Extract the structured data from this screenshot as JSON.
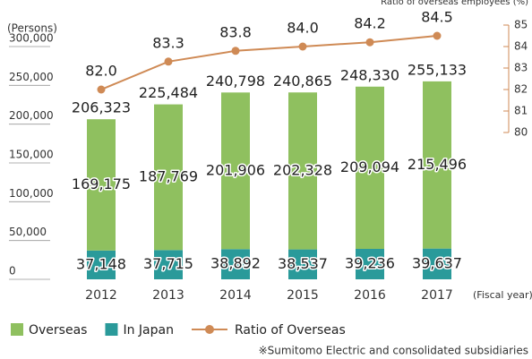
{
  "chart_data": {
    "type": "bar",
    "y_label": "(Persons)",
    "y2_label": "Ratio of overseas employees (%)",
    "x_label": "(Fiscal year)",
    "note": "※Sumitomo Electric and consolidated subsidiaries",
    "categories": [
      "2012",
      "2013",
      "2014",
      "2015",
      "2016",
      "2017"
    ],
    "stacked": true,
    "series": [
      {
        "name": "In Japan",
        "color": "#2a9a9a",
        "values": [
          37148,
          37715,
          38892,
          38537,
          39236,
          39637
        ],
        "value_labels": [
          "37,148",
          "37,715",
          "38,892",
          "38,537",
          "39,236",
          "39,637"
        ]
      },
      {
        "name": "Overseas",
        "color": "#8fc05f",
        "values": [
          169175,
          187769,
          201906,
          202328,
          209094,
          215496
        ],
        "value_labels": [
          "169,175",
          "187,769",
          "201,906",
          "202,328",
          "209,094",
          "215,496"
        ]
      },
      {
        "name": "Ratio of Overseas",
        "type": "line",
        "axis": "y2",
        "color": "#cf8a55",
        "values": [
          82.0,
          83.3,
          83.8,
          84.0,
          84.2,
          84.5
        ],
        "value_labels": [
          "82.0",
          "83.3",
          "83.8",
          "84.0",
          "84.2",
          "84.5"
        ]
      }
    ],
    "totals": [
      206323,
      225484,
      240798,
      240865,
      248330,
      255133
    ],
    "total_labels": [
      "206,323",
      "225,484",
      "240,798",
      "240,865",
      "248,330",
      "255,133"
    ],
    "ylim": [
      0,
      300000
    ],
    "yticks": [
      0,
      {
        "value": 50000,
        "label": "50,000"
      },
      {
        "value": 100000,
        "label": "100,000"
      },
      {
        "value": 150000,
        "label": "150,000"
      },
      {
        "value": 200000,
        "label": "200,000"
      },
      {
        "value": 250000,
        "label": "250,000"
      },
      {
        "value": 300000,
        "label": "300,000"
      }
    ],
    "y2lim": [
      80,
      85
    ],
    "y2ticks": [
      80,
      81,
      82,
      83,
      84,
      85
    ]
  }
}
